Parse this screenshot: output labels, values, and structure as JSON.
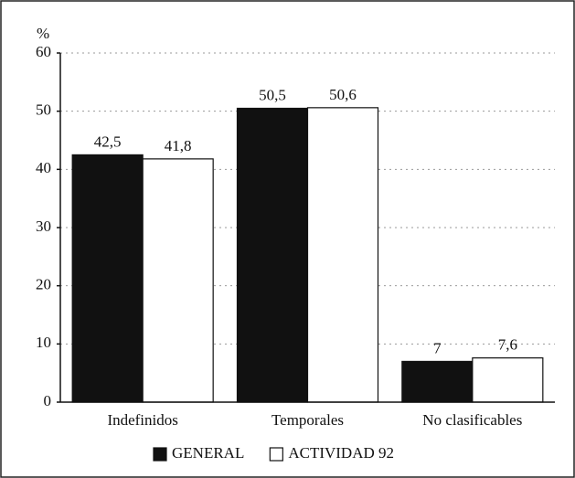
{
  "chart_data": {
    "type": "bar",
    "y_label": "%",
    "categories": [
      "Indefinidos",
      "Temporales",
      "No clasificables"
    ],
    "series": [
      {
        "name": "GENERAL",
        "color": "#111111",
        "values": [
          42.5,
          50.5,
          7
        ],
        "value_labels": [
          "42,5",
          "50,5",
          "7"
        ]
      },
      {
        "name": "ACTIVIDAD 92",
        "color": "#ffffff",
        "values": [
          41.8,
          50.6,
          7.6
        ],
        "value_labels": [
          "41,8",
          "50,6",
          "7,6"
        ]
      }
    ],
    "ylim": [
      0,
      60
    ],
    "yticks": [
      0,
      10,
      20,
      30,
      40,
      50,
      60
    ],
    "grid": true,
    "legend": "bottom"
  }
}
